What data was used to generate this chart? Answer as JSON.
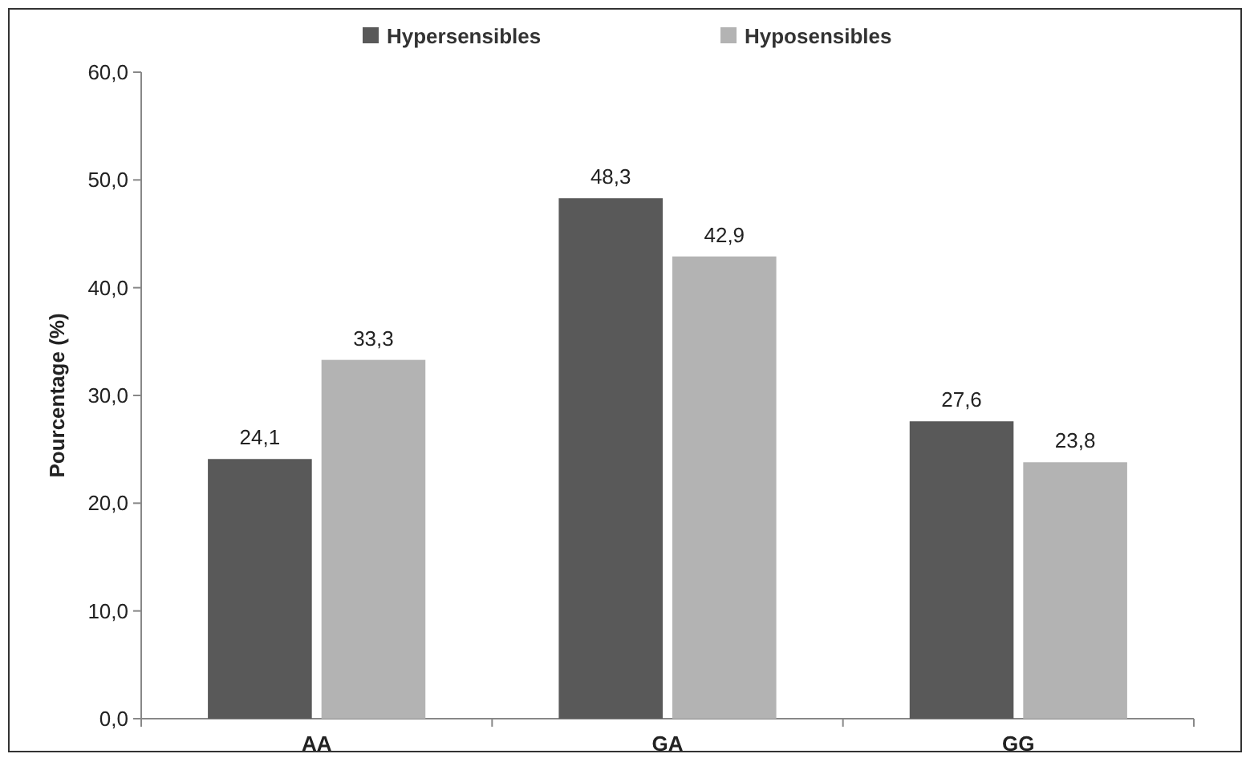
{
  "chart_data": {
    "type": "bar",
    "ylabel": "Pourcentage (%)",
    "categories": [
      "AA",
      "GA",
      "GG"
    ],
    "series": [
      {
        "name": "Hypersensibles",
        "color": "#595959",
        "values": [
          24.1,
          48.3,
          27.6
        ],
        "value_labels": [
          "24,1",
          "48,3",
          "27,6"
        ]
      },
      {
        "name": "Hyposensibles",
        "color": "#b3b3b3",
        "values": [
          33.3,
          42.9,
          23.8
        ],
        "value_labels": [
          "33,3",
          "42,9",
          "23,8"
        ]
      }
    ],
    "ylim": [
      0,
      60
    ],
    "yticks": [
      {
        "value": 0,
        "label": "0,0"
      },
      {
        "value": 10,
        "label": "10,0"
      },
      {
        "value": 20,
        "label": "20,0"
      },
      {
        "value": 30,
        "label": "30,0"
      },
      {
        "value": 40,
        "label": "40,0"
      },
      {
        "value": 50,
        "label": "50,0"
      },
      {
        "value": 60,
        "label": "60,0"
      }
    ],
    "grid": false,
    "legend": "top"
  }
}
